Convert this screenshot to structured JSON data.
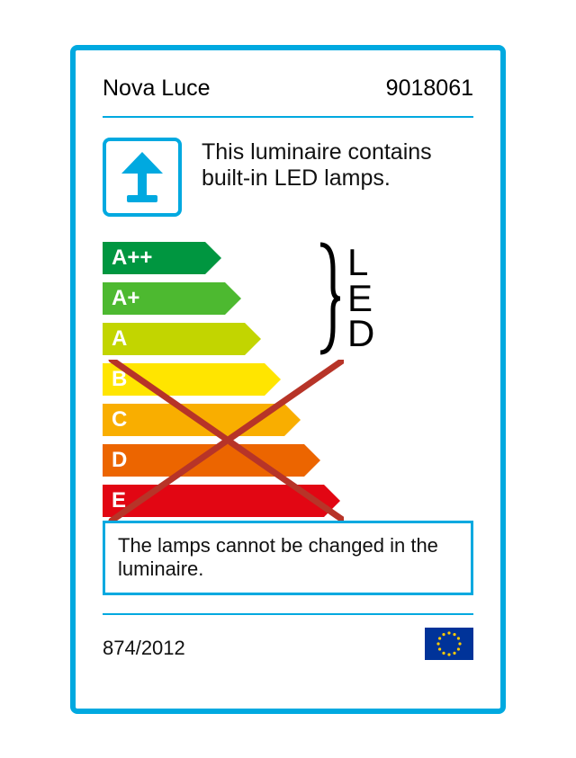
{
  "colors": {
    "accent": "#00a9e0",
    "divider": "#00a9e0",
    "a_pp": "#009640",
    "a_p": "#4db930",
    "a": "#c2d500",
    "b": "#ffe500",
    "c": "#f9ae00",
    "d": "#ec6500",
    "e": "#e20613",
    "cross": "#b73428",
    "eu_blue": "#003399",
    "eu_star": "#ffcc00"
  },
  "brand": "Nova Luce",
  "model": "9018061",
  "description": "This luminaire contains built-in LED lamps.",
  "rating": {
    "classes": [
      "A++",
      "A+",
      "A",
      "B",
      "C",
      "D",
      "E"
    ],
    "widths": [
      114,
      136,
      158,
      180,
      202,
      224,
      246
    ],
    "highlighted": [
      "A++",
      "A+",
      "A"
    ],
    "crossed": [
      "B",
      "C",
      "D",
      "E"
    ],
    "bracket_label": "L\nE\nD"
  },
  "note": "The lamps cannot be changed in the luminaire.",
  "regulation": "874/2012"
}
